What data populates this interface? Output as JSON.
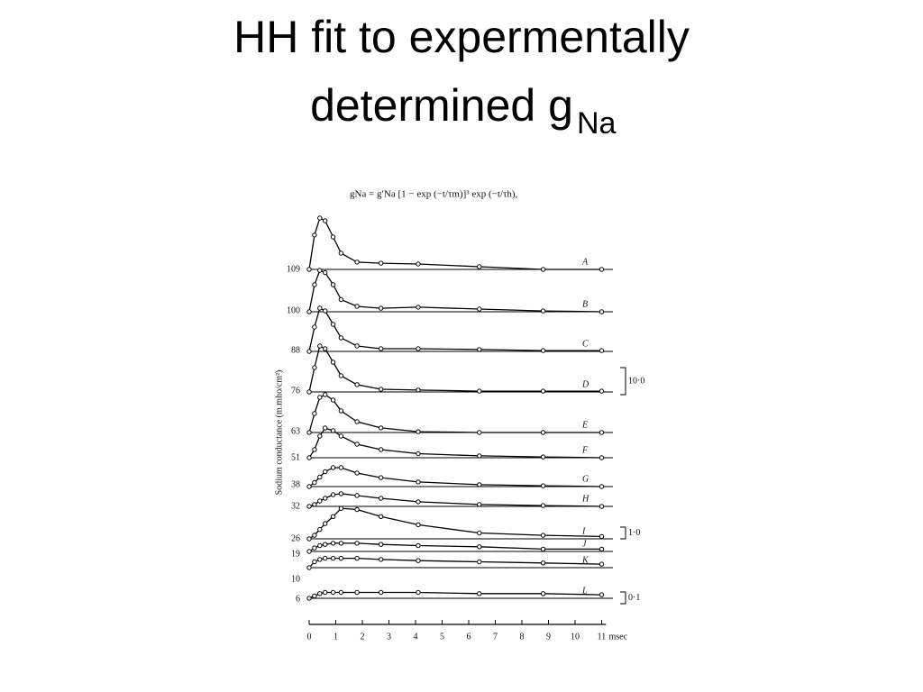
{
  "slide": {
    "title": {
      "line1": "HH fit to expermentally",
      "line2": "determined g",
      "subscript": "Na"
    }
  },
  "chart_data": {
    "type": "line",
    "equation": "gNa = g′Na [1 − exp (−t/τm)]³ exp (−t/τh),",
    "ylabel": "Sodium conductance (m.mho/cm²)",
    "x_unit": "msec",
    "x": [
      0,
      0.2,
      0.4,
      0.6,
      0.9,
      1.2,
      1.8,
      2.7,
      4.1,
      6.4,
      8.8,
      11
    ],
    "xlim": [
      0,
      11.5
    ],
    "xticks": [
      0,
      1,
      2,
      3,
      4,
      5,
      6,
      7,
      8,
      9,
      10,
      11
    ],
    "scale_bars": [
      {
        "value": 10,
        "label": "10·0"
      },
      {
        "value": 1,
        "label": "1·0"
      },
      {
        "value": 0.1,
        "label": "0·1"
      }
    ],
    "series": [
      {
        "name": "A",
        "potential": 109,
        "color": "#000000",
        "values": [
          0,
          12.7,
          19,
          18,
          12,
          6,
          2.7,
          2.3,
          2,
          1,
          0,
          0
        ]
      },
      {
        "name": "B",
        "potential": 100,
        "color": "#000000",
        "values": [
          0,
          10,
          15.3,
          14.5,
          10,
          4.5,
          2,
          1.3,
          1.7,
          1,
          0.3,
          0
        ]
      },
      {
        "name": "C",
        "potential": 88,
        "color": "#000000",
        "values": [
          0,
          9,
          16,
          15,
          10,
          5,
          2,
          1,
          1,
          0.7,
          0.3,
          0.3
        ]
      },
      {
        "name": "D",
        "potential": 76,
        "color": "#000000",
        "values": [
          0,
          9,
          17,
          16,
          11,
          6,
          2.7,
          1,
          0.7,
          0.3,
          0.3,
          0.3
        ]
      },
      {
        "name": "E",
        "potential": 63,
        "color": "#000000",
        "values": [
          0,
          7,
          13,
          14,
          12,
          8,
          4,
          1.7,
          0.3,
          0,
          0,
          0
        ]
      },
      {
        "name": "F",
        "potential": 51,
        "color": "#000000",
        "values": [
          0,
          3,
          8,
          11,
          10,
          8,
          5,
          3,
          1.5,
          0.7,
          0.3,
          0
        ]
      },
      {
        "name": "G",
        "potential": 38,
        "color": "#000000",
        "values": [
          0,
          1.5,
          3.5,
          5.5,
          7,
          7,
          5,
          3.3,
          1.7,
          0.7,
          0.3,
          0
        ]
      },
      {
        "name": "H",
        "potential": 32,
        "color": "#000000",
        "values": [
          0,
          0.7,
          2,
          3,
          4.3,
          4.7,
          4,
          3,
          1.7,
          0.7,
          0.3,
          0
        ]
      },
      {
        "name": "I",
        "potential": 26,
        "color": "#000000",
        "values": [
          0,
          0.3,
          0.8,
          1.3,
          1.9,
          2.6,
          2.5,
          1.9,
          1.2,
          0.5,
          0.3,
          0.2
        ]
      },
      {
        "name": "J",
        "potential": 19,
        "color": "#000000",
        "values": [
          0,
          0.3,
          0.5,
          0.6,
          0.7,
          0.7,
          0.7,
          0.6,
          0.5,
          0.4,
          0.2,
          0.2
        ]
      },
      {
        "name": "K",
        "potential": 10,
        "color": "#000000",
        "values": [
          0,
          0.5,
          0.7,
          0.8,
          0.8,
          0.8,
          0.8,
          0.7,
          0.6,
          0.5,
          0.4,
          0.3
        ]
      },
      {
        "name": "L",
        "potential": 6,
        "color": "#000000",
        "values": [
          0,
          0.02,
          0.04,
          0.05,
          0.05,
          0.05,
          0.05,
          0.05,
          0.05,
          0.04,
          0.04,
          0.03
        ]
      }
    ]
  }
}
